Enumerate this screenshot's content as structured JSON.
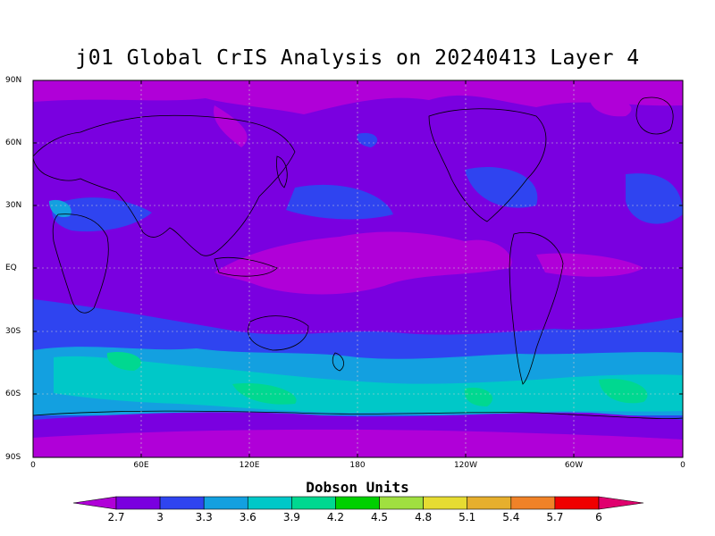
{
  "title": "j01 Global CrIS Analysis on 20240413 Layer 4",
  "y_ticks": [
    "90N",
    "60N",
    "30N",
    "EQ",
    "30S",
    "60S",
    "90S"
  ],
  "x_ticks": [
    "0",
    "60E",
    "120E",
    "180",
    "120W",
    "60W",
    "0"
  ],
  "colorbar": {
    "label": "Dobson Units",
    "ticks": [
      "2.7",
      "3",
      "3.3",
      "3.6",
      "3.9",
      "4.2",
      "4.5",
      "4.8",
      "5.1",
      "5.4",
      "5.7",
      "6"
    ],
    "colors": [
      "#b000d8",
      "#7a00e0",
      "#2f44f0",
      "#13a0e0",
      "#00c8c8",
      "#00d890",
      "#00d000",
      "#a0e040",
      "#e6dc32",
      "#e6af2d",
      "#f08228",
      "#f00000",
      "#e0006e"
    ]
  },
  "chart_data": {
    "type": "heatmap",
    "title": "j01 Global CrIS Analysis on 20240413 Layer 4",
    "colorbar_label": "Dobson Units",
    "levels": [
      2.7,
      3.0,
      3.3,
      3.6,
      3.9,
      4.2,
      4.5,
      4.8,
      5.1,
      5.4,
      5.7,
      6.0
    ],
    "longitude_range": [
      0,
      360
    ],
    "latitude_range": [
      -90,
      90
    ],
    "grid": true,
    "zonal_bands": [
      {
        "lat_range": [
          60,
          90
        ],
        "value_range": [
          2.7,
          3.0
        ]
      },
      {
        "lat_range": [
          30,
          60
        ],
        "value_range": [
          2.7,
          3.3
        ]
      },
      {
        "lat_range": [
          -15,
          30
        ],
        "value_range": [
          2.7,
          3.3
        ]
      },
      {
        "lat_range": [
          -40,
          -15
        ],
        "value_range": [
          3.0,
          3.6
        ]
      },
      {
        "lat_range": [
          -70,
          -40
        ],
        "value_range": [
          3.3,
          4.2
        ]
      },
      {
        "lat_range": [
          -90,
          -70
        ],
        "value_range": [
          2.7,
          3.3
        ]
      }
    ]
  }
}
